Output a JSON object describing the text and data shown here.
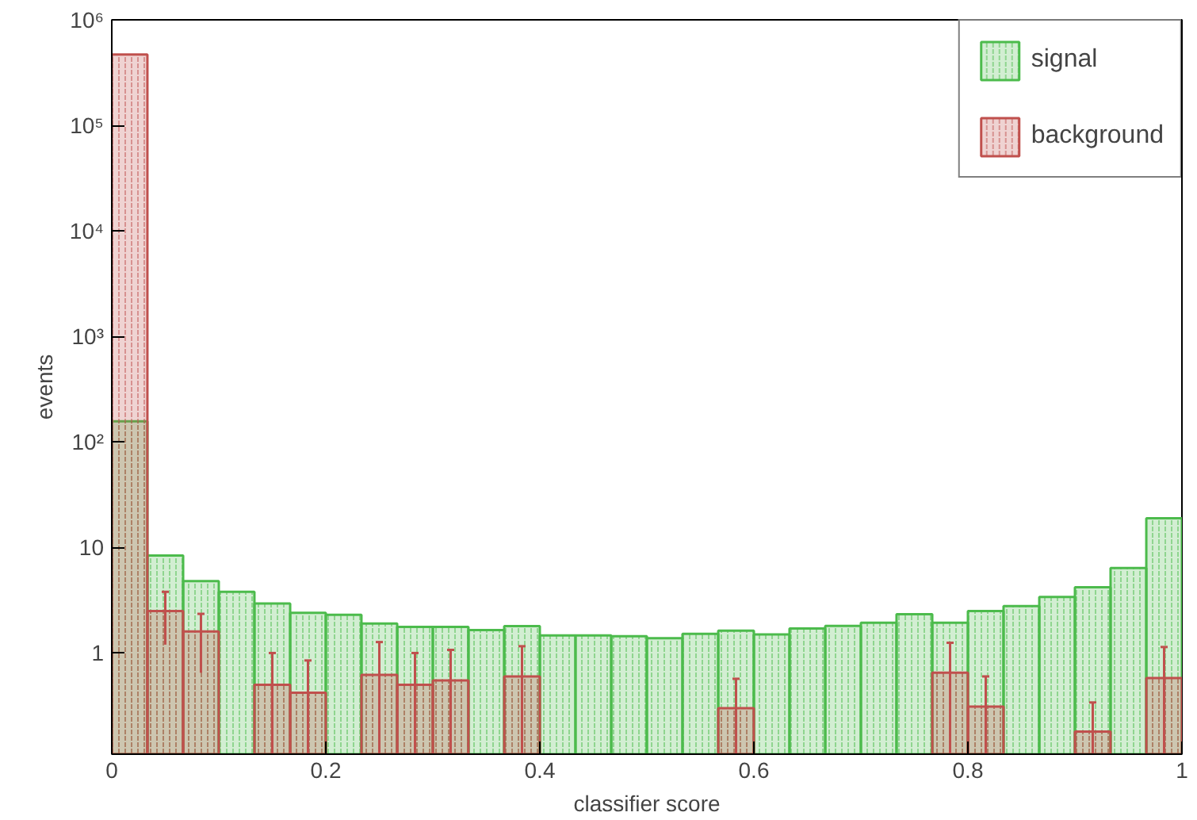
{
  "chart_data": {
    "type": "histogram",
    "xlabel": "classifier score",
    "ylabel": "events",
    "bins": [
      0,
      0.0333,
      0.0667,
      0.1,
      0.1333,
      0.1667,
      0.2,
      0.2333,
      0.2667,
      0.3,
      0.3333,
      0.3667,
      0.4,
      0.4333,
      0.4667,
      0.5,
      0.5333,
      0.5667,
      0.6,
      0.6333,
      0.6667,
      0.7,
      0.7333,
      0.7667,
      0.8,
      0.8333,
      0.8667,
      0.9,
      0.9333,
      0.9667,
      1
    ],
    "series": [
      {
        "name": "signal",
        "color": "#4cbb4c",
        "values": [
          157,
          8.4,
          4.8,
          3.8,
          2.95,
          2.4,
          2.3,
          1.9,
          1.77,
          1.77,
          1.65,
          1.8,
          1.47,
          1.47,
          1.44,
          1.38,
          1.52,
          1.63,
          1.5,
          1.71,
          1.81,
          1.94,
          2.33,
          1.94,
          2.5,
          2.78,
          3.4,
          4.2,
          6.4,
          18.9
        ]
      },
      {
        "name": "background",
        "color": "#c0504d",
        "values": [
          470000,
          2.5,
          1.6,
          null,
          0.5,
          0.42,
          null,
          0.62,
          0.5,
          0.55,
          null,
          0.6,
          null,
          null,
          null,
          null,
          null,
          0.3,
          null,
          null,
          null,
          null,
          null,
          0.65,
          0.31,
          null,
          null,
          0.18,
          null,
          0.58
        ],
        "errors": [
          null,
          [
            1.2,
            3.8
          ],
          [
            0.65,
            2.35
          ],
          null,
          [
            0.11,
            1.0
          ],
          [
            0.11,
            0.85
          ],
          null,
          [
            0.11,
            1.27
          ],
          [
            0.11,
            1.0
          ],
          [
            0.11,
            1.07
          ],
          null,
          [
            0.11,
            1.16
          ],
          null,
          null,
          null,
          null,
          null,
          [
            0.11,
            0.57
          ],
          null,
          null,
          null,
          null,
          null,
          [
            0.11,
            1.25
          ],
          [
            0.11,
            0.6
          ],
          null,
          null,
          [
            0.11,
            0.34
          ],
          null,
          [
            0.11,
            1.14
          ]
        ]
      }
    ],
    "log": "y",
    "xlim": [
      0,
      1
    ],
    "ylim": [
      0.11,
      1000000
    ],
    "xticks": [
      0,
      0.2,
      0.4,
      0.6,
      0.8,
      1
    ],
    "yticks": [
      1,
      10,
      {
        "value": 100,
        "label": "10²"
      },
      {
        "value": 1000,
        "label": "10³"
      },
      {
        "value": 10000,
        "label": "10⁴"
      },
      {
        "value": 100000,
        "label": "10⁵"
      },
      {
        "value": 1000000,
        "label": "10⁶"
      }
    ],
    "legend": "top right"
  }
}
